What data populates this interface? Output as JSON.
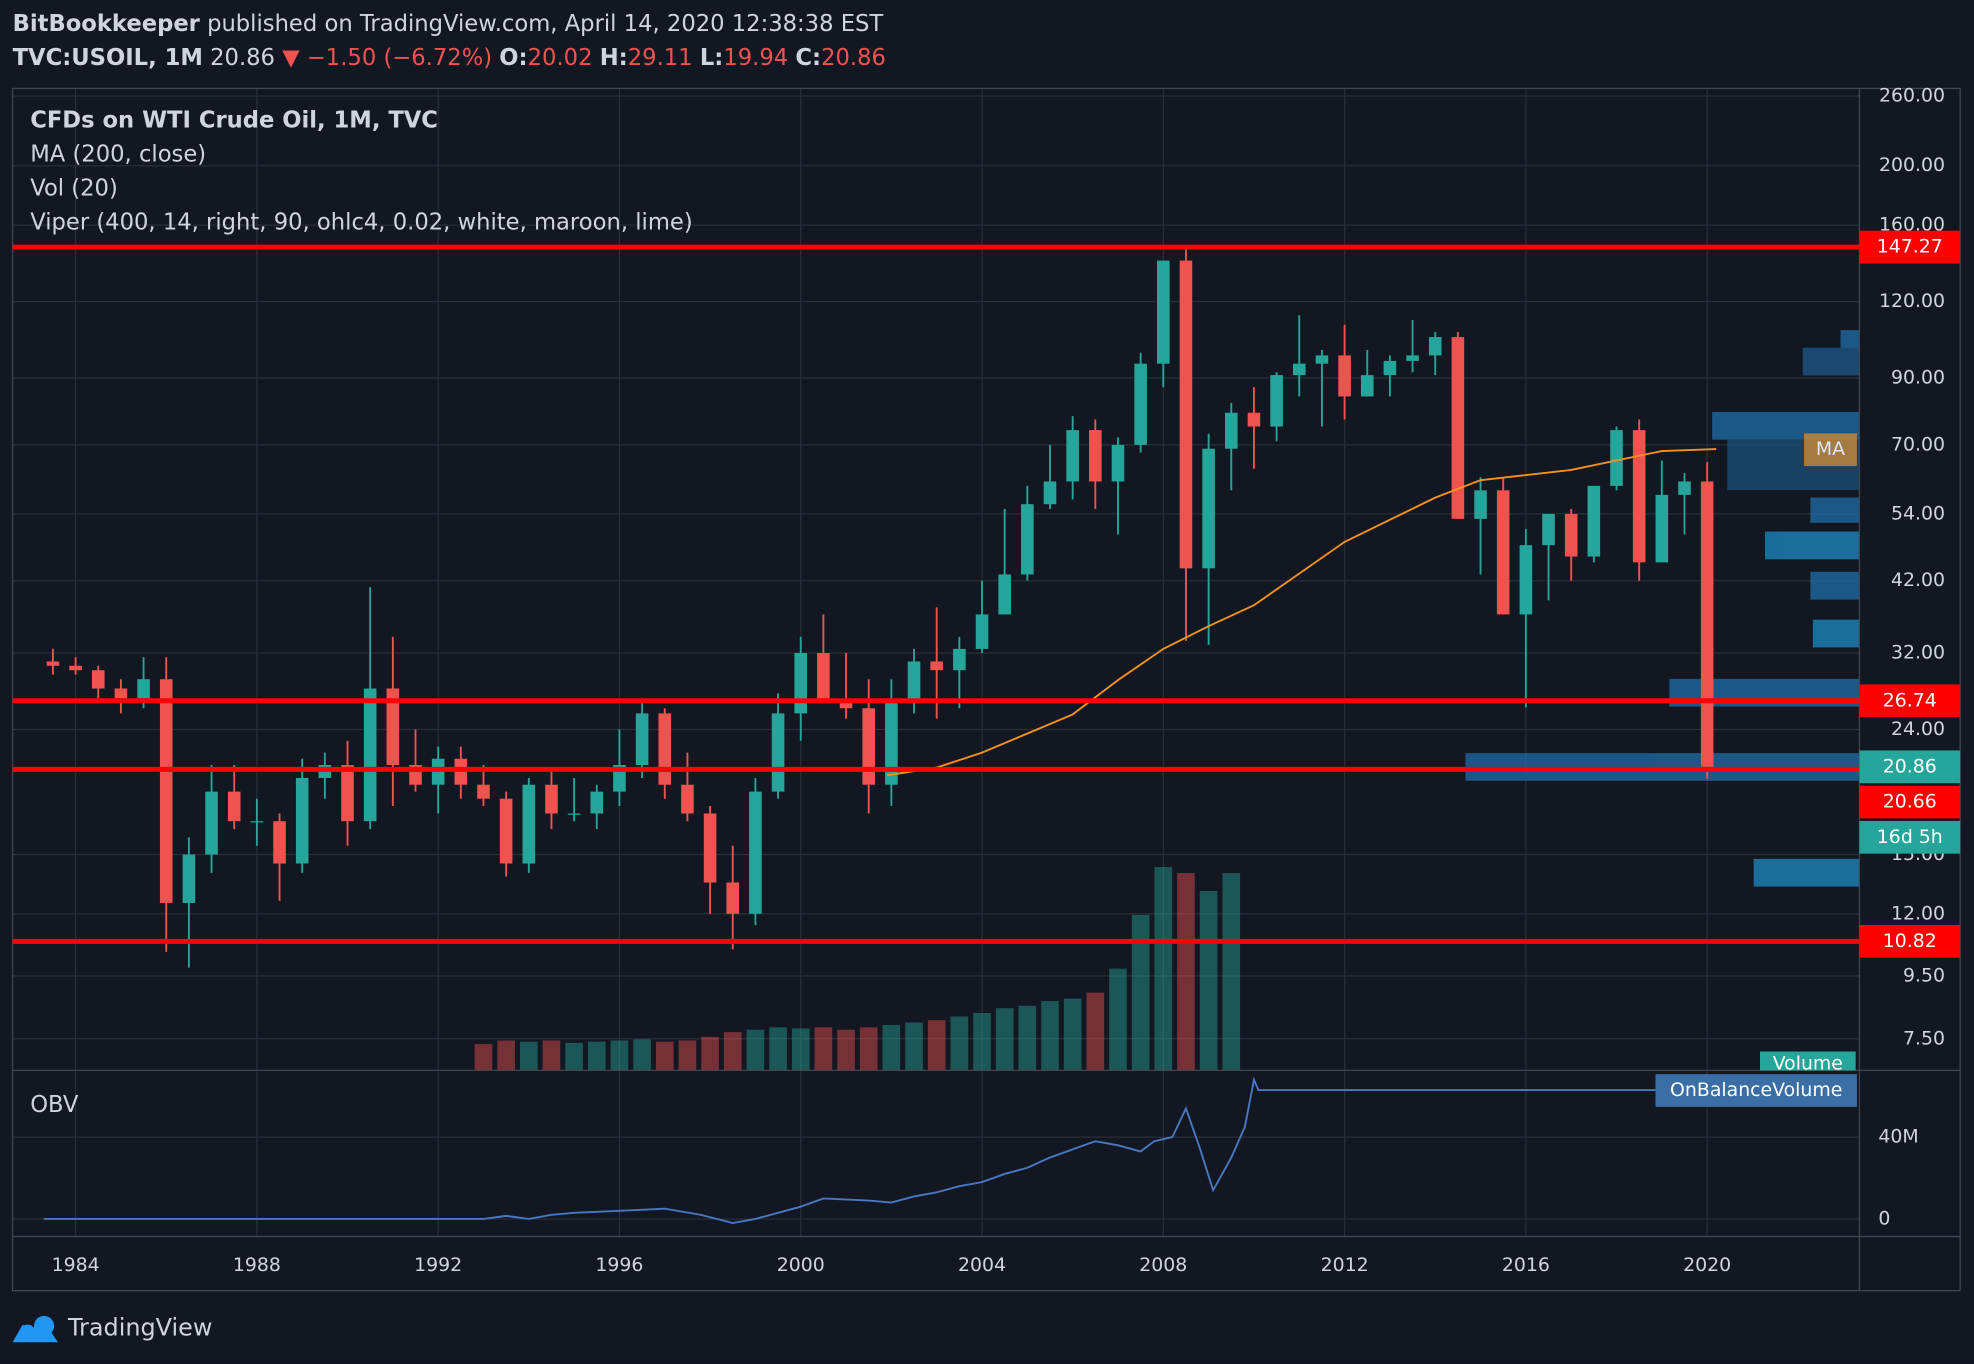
{
  "header": {
    "author": "BitBookkeeper",
    "published": "published on TradingView.com, April 14, 2020 12:38:38 EST",
    "symbol": "TVC:USOIL, 1M",
    "last": "20.86",
    "change": "▼ −1.50 (−6.72%)",
    "o_label": "O:",
    "o": "20.02",
    "h_label": "H:",
    "h": "29.11",
    "l_label": "L:",
    "l": "19.94",
    "c_label": "C:",
    "c": "20.86"
  },
  "chart_data": {
    "type": "candlestick",
    "title": "CFDs on WTI Crude Oil, 1M, TVC",
    "log_scale": true,
    "grid": true,
    "up_color": "#26a69a",
    "down_color": "#ef5350",
    "x": [
      1983.5,
      1984.0,
      1984.5,
      1985.0,
      1985.5,
      1986.0,
      1986.5,
      1987.0,
      1987.5,
      1988.0,
      1988.5,
      1989.0,
      1989.5,
      1990.0,
      1990.5,
      1991.0,
      1991.5,
      1992.0,
      1992.5,
      1993.0,
      1993.5,
      1994.0,
      1994.5,
      1995.0,
      1995.5,
      1996.0,
      1996.5,
      1997.0,
      1997.5,
      1998.0,
      1998.5,
      1999.0,
      1999.5,
      2000.0,
      2000.5,
      2001.0,
      2001.5,
      2002.0,
      2002.5,
      2003.0,
      2003.5,
      2004.0,
      2004.5,
      2005.0,
      2005.5,
      2006.0,
      2006.5,
      2007.0,
      2007.5,
      2008.0,
      2008.5,
      2009.0,
      2009.5,
      2010.0,
      2010.5,
      2011.0,
      2011.5,
      2012.0,
      2012.5,
      2013.0,
      2013.5,
      2014.0,
      2014.5,
      2015.0,
      2015.5,
      2016.0,
      2016.5,
      2017.0,
      2017.5,
      2018.0,
      2018.5,
      2019.0,
      2019.5,
      2020.0
    ],
    "open": [
      31,
      30.5,
      30,
      28,
      27,
      29,
      12.5,
      15,
      19,
      17,
      17,
      14.5,
      20,
      21,
      17,
      28,
      21,
      19.5,
      21.5,
      19.5,
      18.5,
      14.5,
      19.5,
      17.5,
      17.5,
      19,
      21,
      25.5,
      19.5,
      17.5,
      13.5,
      12,
      19,
      25.5,
      32,
      26.5,
      26,
      19.5,
      26.5,
      31,
      30,
      32.5,
      37,
      43,
      56,
      61,
      74,
      61,
      70,
      95,
      140,
      44,
      69,
      79,
      75,
      91,
      95,
      98,
      84,
      91,
      96,
      98,
      105,
      53,
      59,
      37,
      48,
      54,
      46,
      60,
      74,
      45,
      58,
      61
    ],
    "high": [
      32.5,
      31.5,
      30.5,
      29,
      31.5,
      31.5,
      16,
      21,
      21,
      18.5,
      17.5,
      21.5,
      22,
      23,
      41,
      34,
      24,
      22.5,
      22.5,
      21,
      19,
      20,
      20.5,
      20,
      19.5,
      24,
      26.5,
      26,
      22,
      18,
      15.5,
      20,
      27.5,
      34,
      37,
      32,
      29,
      29,
      32.5,
      38,
      34,
      42,
      55,
      60,
      70,
      78,
      77,
      72,
      99,
      140,
      147.27,
      73,
      82,
      87,
      92,
      114,
      100,
      110,
      100,
      98,
      112,
      107,
      107,
      62,
      62,
      51,
      52,
      55,
      60,
      75,
      77,
      66,
      63,
      65.6
    ],
    "low": [
      29.5,
      29.5,
      27,
      25.5,
      26,
      10.4,
      9.8,
      14,
      16.5,
      15.5,
      12.6,
      14,
      18.5,
      15.5,
      16.5,
      18,
      19,
      17.5,
      18.5,
      18,
      13.8,
      14,
      16.5,
      17,
      16.5,
      18,
      20,
      18.5,
      17,
      12,
      10.5,
      11.5,
      18.5,
      23,
      28,
      25,
      17.5,
      18,
      25.5,
      25,
      26,
      32,
      37,
      42,
      55,
      57,
      55,
      50,
      68,
      87,
      33.5,
      33,
      59,
      64,
      71,
      84,
      75,
      77,
      84,
      84,
      92,
      91,
      53,
      43,
      37,
      26.1,
      39,
      42,
      45,
      59,
      42,
      45,
      50,
      19.94
    ],
    "close": [
      30.5,
      30,
      28,
      27,
      29,
      12.5,
      15,
      19,
      17,
      17,
      14.5,
      20,
      21,
      17,
      28,
      21,
      19.5,
      21.5,
      19.5,
      18.5,
      14.5,
      19.5,
      17.5,
      17.5,
      19,
      21,
      25.5,
      19.5,
      17.5,
      13.5,
      12,
      19,
      25.5,
      32,
      26.5,
      26,
      19.5,
      26.5,
      31,
      30,
      32.5,
      37,
      43,
      56,
      61,
      74,
      61,
      70,
      95,
      140,
      44,
      69,
      79,
      75,
      91,
      95,
      98,
      84,
      91,
      96,
      98,
      105,
      53,
      59,
      37,
      48,
      54,
      46,
      60,
      74,
      45,
      58,
      61,
      20.86
    ],
    "xlim": [
      1982.61,
      2023.36
    ],
    "xticks": [
      1984,
      1988,
      1992,
      1996,
      2000,
      2004,
      2008,
      2012,
      2016,
      2020
    ],
    "ylim": [
      6.66,
      267.5
    ],
    "yticks": [
      {
        "value": 260,
        "label": "260.00"
      },
      {
        "value": 200,
        "label": "200.00"
      },
      {
        "value": 160,
        "label": "160.00"
      },
      {
        "value": 120,
        "label": "120.00"
      },
      {
        "value": 90,
        "label": "90.00"
      },
      {
        "value": 70,
        "label": "70.00"
      },
      {
        "value": 54,
        "label": "54.00"
      },
      {
        "value": 42,
        "label": "42.00"
      },
      {
        "value": 32,
        "label": "32.00"
      },
      {
        "value": 24,
        "label": "24.00"
      },
      {
        "value": 15,
        "label": "15.00"
      },
      {
        "value": 12,
        "label": "12.00"
      },
      {
        "value": 9.5,
        "label": "9.50"
      },
      {
        "value": 7.5,
        "label": "7.50"
      }
    ],
    "levels": {
      "color": "#ff0000",
      "values": [
        147.27,
        26.74,
        20.66,
        10.82
      ]
    },
    "current": {
      "value": 20.86,
      "countdown": "16d 5h",
      "color": "#26a69a"
    },
    "ma": {
      "name": "MA (200, close)",
      "tag": "MA",
      "color": "#f7931a",
      "x": [
        2001.9,
        2003,
        2004,
        2006,
        2007,
        2008,
        2009,
        2010,
        2012,
        2014,
        2015,
        2017,
        2019,
        2020.2
      ],
      "values": [
        20.2,
        20.8,
        22.0,
        25.4,
        28.9,
        32.5,
        35.4,
        38.3,
        48.6,
        57.4,
        61.3,
        63.7,
        68.4,
        68.9
      ]
    },
    "volume": {
      "name": "Vol (20)",
      "tag": "Volume",
      "vlim": [
        0,
        200
      ],
      "x": [
        1993.0,
        1993.5,
        1994.0,
        1994.5,
        1995.0,
        1995.5,
        1996.0,
        1996.5,
        1997.0,
        1997.5,
        1998.0,
        1998.5,
        1999.0,
        1999.5,
        2000.0,
        2000.5,
        2001.0,
        2001.5,
        2002.0,
        2002.5,
        2003.0,
        2003.5,
        2004.0,
        2004.5,
        2005.0,
        2005.5,
        2006.0,
        2006.5,
        2007.0,
        2007.5,
        2008.0,
        2008.5,
        2009.0,
        2009.5
      ],
      "values": [
        22,
        25,
        24,
        25,
        23,
        24,
        25,
        26,
        24,
        25,
        28,
        32,
        34,
        36,
        35,
        36,
        34,
        36,
        38,
        40,
        42,
        45,
        48,
        52,
        54,
        58,
        60,
        65,
        85,
        130,
        170,
        165,
        150,
        165
      ]
    },
    "indicator": "Viper (400, 14, right, 90, ohlc4, 0.02, white, maroon, lime)",
    "obv": {
      "name": "OBV",
      "tag": "OnBalanceVolume",
      "color": "#4a78c0",
      "ylim": [
        -8.6,
        72.6
      ],
      "yticks": [
        {
          "value": 40,
          "label": "40M"
        },
        0
      ],
      "x": [
        1983.3,
        1993,
        1993.5,
        1994,
        1994.5,
        1995,
        1996,
        1997,
        1997.8,
        1998.5,
        1999,
        1999.5,
        2000,
        2000.5,
        2001.5,
        2002,
        2002.5,
        2003,
        2003.5,
        2004,
        2004.5,
        2005,
        2005.5,
        2006,
        2006.5,
        2007,
        2007.5,
        2007.8,
        2008.2,
        2008.5,
        2008.8,
        2009.1,
        2009.5,
        2009.8,
        2010,
        2010.1,
        2018.9
      ],
      "values": [
        0,
        0,
        1.5,
        0,
        2,
        3,
        4,
        5,
        2,
        -2,
        0,
        3,
        6,
        10,
        9,
        8,
        11,
        13,
        16,
        18,
        22,
        25,
        30,
        34,
        38,
        36,
        33,
        38,
        40,
        54,
        35,
        14,
        30,
        45,
        68,
        63,
        63
      ]
    }
  },
  "footer": {
    "brand": "TradingView"
  }
}
